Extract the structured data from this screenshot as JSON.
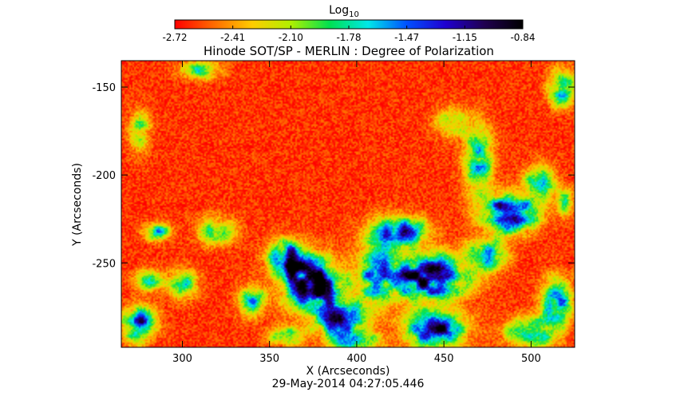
{
  "chart_data": {
    "type": "heatmap",
    "title": "Hinode SOT/SP - MERLIN : Degree of Polarization",
    "xlabel": "X (Arcseconds)",
    "ylabel": "Y (Arcseconds)",
    "timestamp": "29-May-2014 04:27:05.446",
    "xlim": [
      265,
      525
    ],
    "ylim": [
      -298,
      -135
    ],
    "x_ticks": [
      300,
      350,
      400,
      450,
      500
    ],
    "y_ticks": [
      -150,
      -200,
      -250
    ],
    "colorbar": {
      "label_base": "Log",
      "label_sub": "10",
      "min": -2.72,
      "max": -0.84,
      "ticks": [
        "-2.72",
        "-2.41",
        "-2.10",
        "-1.78",
        "-1.47",
        "-1.15",
        "-0.84"
      ],
      "colormap": [
        "#ff0000",
        "#ff6a00",
        "#ffcc00",
        "#b0f000",
        "#00e050",
        "#00e8e8",
        "#0050ff",
        "#2000d0",
        "#200050",
        "#000000"
      ]
    },
    "field": {
      "description_values": "log10 degree of polarization, sparse sample of the map",
      "background_value": -2.62,
      "patches": [
        {
          "x": 375,
          "y": -262,
          "amp": 1.0,
          "rx": 16,
          "ry": 14
        },
        {
          "x": 390,
          "y": -282,
          "amp": 0.9,
          "rx": 12,
          "ry": 10
        },
        {
          "x": 360,
          "y": -248,
          "amp": 0.8,
          "rx": 10,
          "ry": 10
        },
        {
          "x": 440,
          "y": -258,
          "amp": 1.0,
          "rx": 22,
          "ry": 12
        },
        {
          "x": 425,
          "y": -232,
          "amp": 0.85,
          "rx": 14,
          "ry": 8
        },
        {
          "x": 445,
          "y": -288,
          "amp": 0.9,
          "rx": 16,
          "ry": 10
        },
        {
          "x": 488,
          "y": -222,
          "amp": 1.05,
          "rx": 14,
          "ry": 10
        },
        {
          "x": 475,
          "y": -245,
          "amp": 0.7,
          "rx": 10,
          "ry": 8
        },
        {
          "x": 470,
          "y": -192,
          "amp": 0.55,
          "rx": 8,
          "ry": 18
        },
        {
          "x": 505,
          "y": -205,
          "amp": 0.6,
          "rx": 8,
          "ry": 10
        },
        {
          "x": 515,
          "y": -272,
          "amp": 0.8,
          "rx": 8,
          "ry": 12
        },
        {
          "x": 518,
          "y": -150,
          "amp": 0.6,
          "rx": 7,
          "ry": 10
        },
        {
          "x": 275,
          "y": -285,
          "amp": 0.85,
          "rx": 9,
          "ry": 9
        },
        {
          "x": 285,
          "y": -232,
          "amp": 0.5,
          "rx": 7,
          "ry": 5
        },
        {
          "x": 320,
          "y": -232,
          "amp": 0.45,
          "rx": 10,
          "ry": 8
        },
        {
          "x": 300,
          "y": -262,
          "amp": 0.5,
          "rx": 8,
          "ry": 8
        },
        {
          "x": 275,
          "y": -175,
          "amp": 0.35,
          "rx": 6,
          "ry": 12
        },
        {
          "x": 310,
          "y": -140,
          "amp": 0.4,
          "rx": 12,
          "ry": 5
        },
        {
          "x": 455,
          "y": -170,
          "amp": 0.35,
          "rx": 10,
          "ry": 8
        },
        {
          "x": 410,
          "y": -255,
          "amp": 0.55,
          "rx": 10,
          "ry": 18
        },
        {
          "x": 400,
          "y": -295,
          "amp": 0.6,
          "rx": 12,
          "ry": 6
        },
        {
          "x": 360,
          "y": -292,
          "amp": 0.5,
          "rx": 10,
          "ry": 5
        },
        {
          "x": 500,
          "y": -290,
          "amp": 0.6,
          "rx": 14,
          "ry": 8
        },
        {
          "x": 340,
          "y": -272,
          "amp": 0.5,
          "rx": 8,
          "ry": 8
        },
        {
          "x": 280,
          "y": -260,
          "amp": 0.45,
          "rx": 8,
          "ry": 6
        },
        {
          "x": 520,
          "y": -215,
          "amp": 0.4,
          "rx": 5,
          "ry": 8
        }
      ]
    }
  }
}
